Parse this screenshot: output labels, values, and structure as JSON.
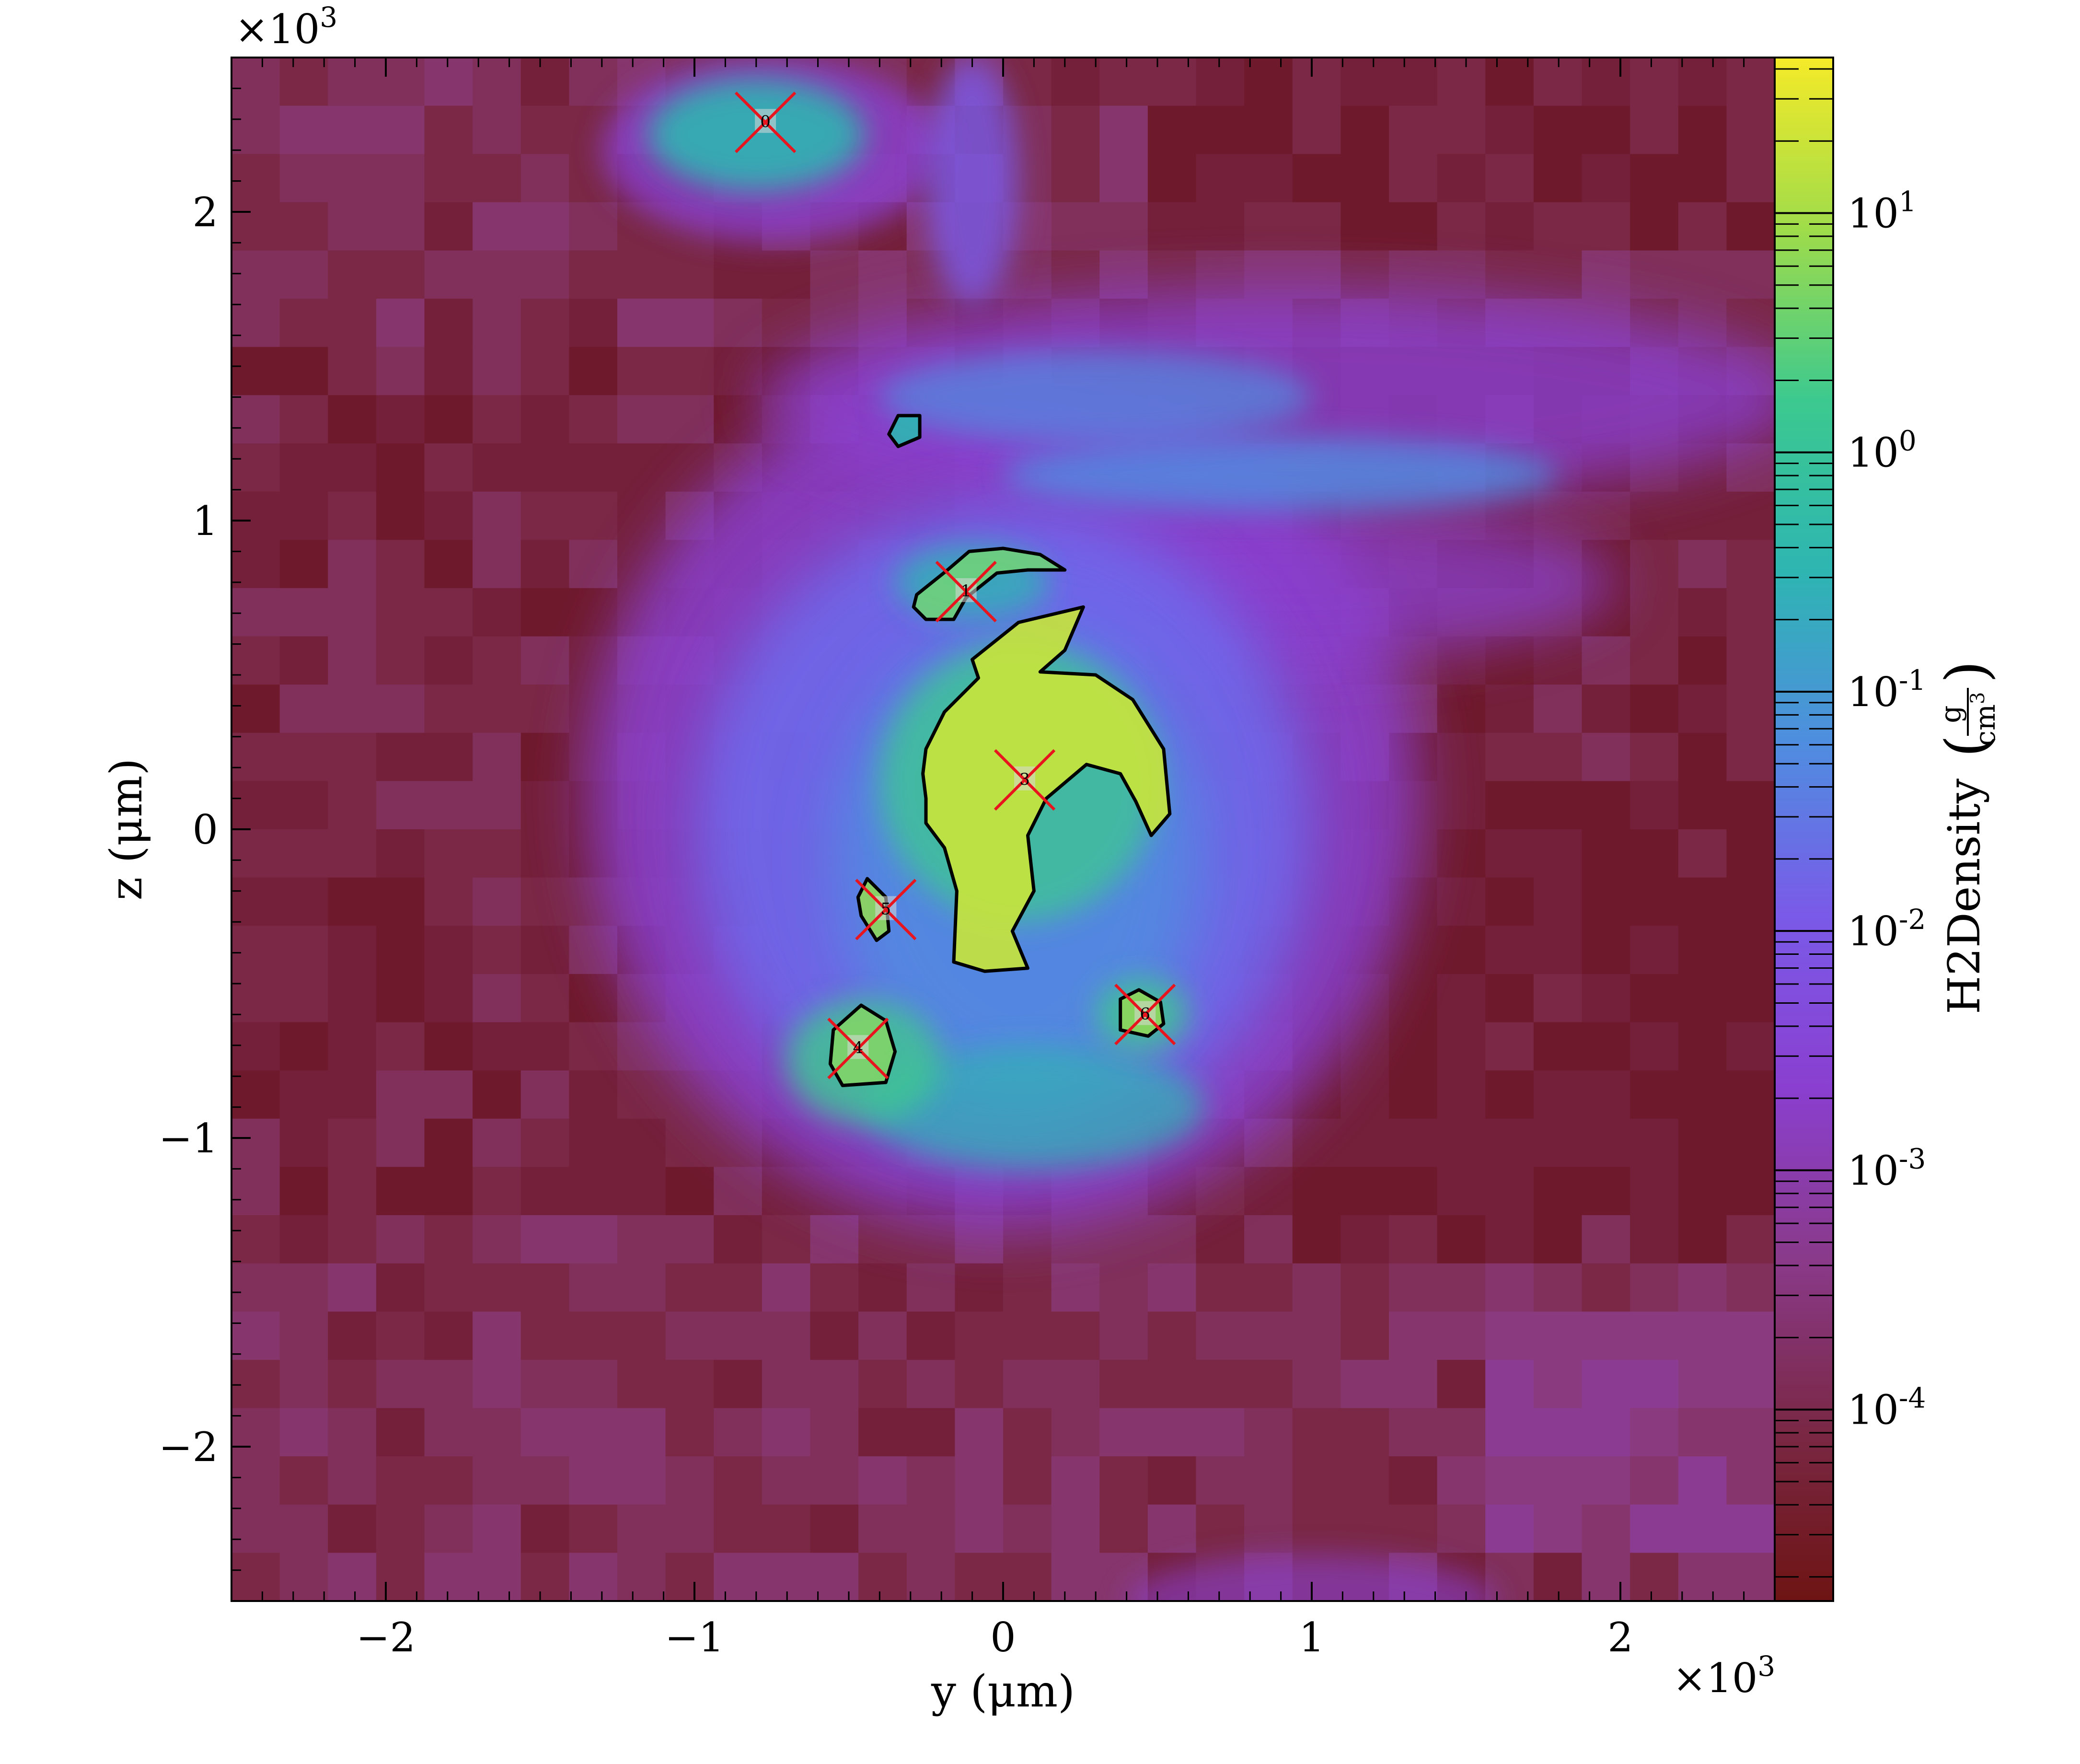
{
  "chart_data": {
    "type": "heatmap",
    "title": "",
    "xlabel": "y  (μm)",
    "ylabel": "z  (μm)",
    "x_multiplier": "×10",
    "x_multiplier_exp": "3",
    "y_multiplier": "×10",
    "y_multiplier_exp": "3",
    "xlim": [
      -2.5,
      2.5
    ],
    "ylim": [
      -2.5,
      2.5
    ],
    "xticks": [
      -2,
      -1,
      0,
      1,
      2
    ],
    "yticks": [
      -2,
      -1,
      0,
      1,
      2
    ],
    "xtick_labels": [
      "−2",
      "−1",
      "0",
      "1",
      "2"
    ],
    "ytick_labels": [
      "−2",
      "−1",
      "0",
      "1",
      "2"
    ],
    "colorbar": {
      "label": "H2Density",
      "unit_num": "g",
      "unit_den": "cm",
      "unit_den_exp": "3",
      "scale": "log",
      "vmin_log10": -4.8,
      "vmax_log10": 1.65,
      "ticks_log10": [
        1,
        0,
        -1,
        -2,
        -3,
        -4
      ],
      "tick_base": "10",
      "tick_exps": [
        "1",
        "0",
        "-1",
        "-2",
        "-3",
        "-4"
      ],
      "colormap_stops": [
        "#6e1414",
        "#7a2845",
        "#8a3a8a",
        "#8a3fd0",
        "#7a5ae8",
        "#4f8de0",
        "#2eb5b2",
        "#3cc98f",
        "#9fdc4a",
        "#f5ea28"
      ]
    },
    "markers": [
      {
        "id": "0",
        "x": -0.77,
        "y": 2.29
      },
      {
        "id": "1",
        "x": -0.12,
        "y": 0.77
      },
      {
        "id": "3",
        "x": 0.07,
        "y": 0.16
      },
      {
        "id": "4",
        "x": -0.47,
        "y": -0.71
      },
      {
        "id": "5",
        "x": -0.38,
        "y": -0.26
      },
      {
        "id": "6",
        "x": 0.46,
        "y": -0.6
      }
    ],
    "contours": [
      [
        [
          -0.34,
          1.34
        ],
        [
          -0.27,
          1.34
        ],
        [
          -0.27,
          1.27
        ],
        [
          -0.34,
          1.24
        ],
        [
          -0.37,
          1.28
        ]
      ],
      [
        [
          -0.28,
          0.76
        ],
        [
          -0.18,
          0.84
        ],
        [
          -0.11,
          0.9
        ],
        [
          0.0,
          0.91
        ],
        [
          0.12,
          0.89
        ],
        [
          0.2,
          0.84
        ],
        [
          0.08,
          0.84
        ],
        [
          -0.02,
          0.83
        ],
        [
          -0.12,
          0.75
        ],
        [
          -0.16,
          0.68
        ],
        [
          -0.25,
          0.68
        ],
        [
          -0.29,
          0.72
        ]
      ],
      [
        [
          -0.25,
          0.26
        ],
        [
          -0.19,
          0.38
        ],
        [
          -0.08,
          0.49
        ],
        [
          -0.1,
          0.55
        ],
        [
          0.05,
          0.67
        ],
        [
          0.26,
          0.72
        ],
        [
          0.2,
          0.58
        ],
        [
          0.12,
          0.51
        ],
        [
          0.3,
          0.5
        ],
        [
          0.42,
          0.42
        ],
        [
          0.52,
          0.26
        ],
        [
          0.54,
          0.05
        ],
        [
          0.48,
          -0.02
        ],
        [
          0.43,
          0.09
        ],
        [
          0.38,
          0.18
        ],
        [
          0.27,
          0.21
        ],
        [
          0.14,
          0.1
        ],
        [
          0.08,
          -0.02
        ],
        [
          0.1,
          -0.2
        ],
        [
          0.03,
          -0.33
        ],
        [
          0.08,
          -0.45
        ],
        [
          -0.06,
          -0.46
        ],
        [
          -0.16,
          -0.43
        ],
        [
          -0.15,
          -0.2
        ],
        [
          -0.19,
          -0.06
        ],
        [
          -0.25,
          0.02
        ],
        [
          -0.25,
          0.1
        ],
        [
          -0.26,
          0.18
        ]
      ],
      [
        [
          -0.44,
          -0.16
        ],
        [
          -0.38,
          -0.22
        ],
        [
          -0.37,
          -0.33
        ],
        [
          -0.41,
          -0.36
        ],
        [
          -0.46,
          -0.28
        ],
        [
          -0.47,
          -0.22
        ]
      ],
      [
        [
          -0.55,
          -0.65
        ],
        [
          -0.46,
          -0.57
        ],
        [
          -0.38,
          -0.62
        ],
        [
          -0.35,
          -0.72
        ],
        [
          -0.38,
          -0.82
        ],
        [
          -0.52,
          -0.83
        ],
        [
          -0.56,
          -0.76
        ]
      ],
      [
        [
          0.38,
          -0.55
        ],
        [
          0.44,
          -0.52
        ],
        [
          0.51,
          -0.56
        ],
        [
          0.52,
          -0.63
        ],
        [
          0.47,
          -0.67
        ],
        [
          0.38,
          -0.65
        ]
      ]
    ],
    "grid": false
  }
}
